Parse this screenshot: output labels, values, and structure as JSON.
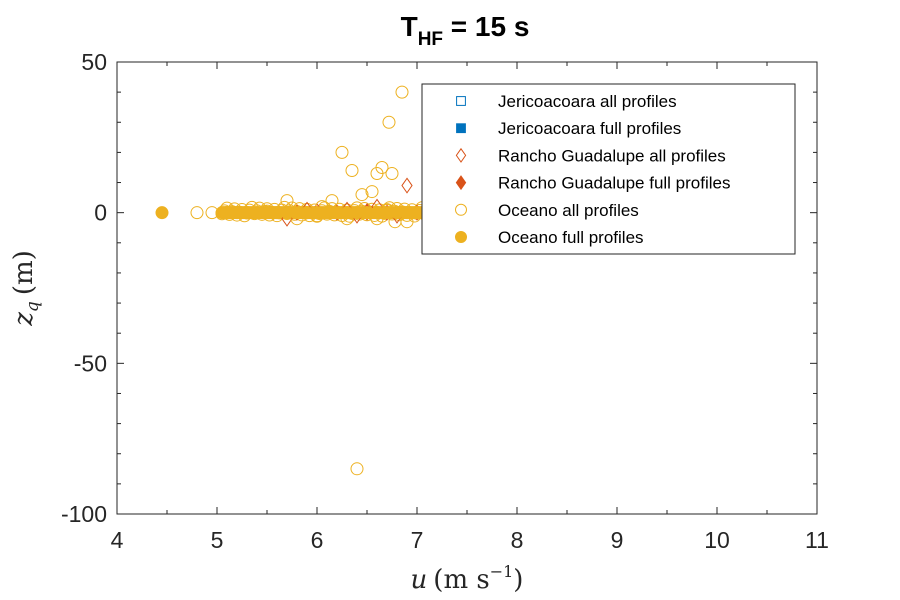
{
  "chart_data": {
    "type": "scatter",
    "title": {
      "main": "T",
      "sub": "HF",
      "rest": " = 15 s"
    },
    "xlabel": {
      "var": "u",
      "unit": "(m s",
      "exp": "−1",
      "close": ")"
    },
    "ylabel": {
      "var": "z",
      "sub": "q",
      "unit": "(m)"
    },
    "xlim": [
      4,
      11
    ],
    "ylim": [
      -100,
      50
    ],
    "xticks": [
      4,
      5,
      6,
      7,
      8,
      9,
      10,
      11
    ],
    "yticks": [
      50,
      0,
      -50,
      -100
    ],
    "xtick_labels": [
      "4",
      "5",
      "6",
      "7",
      "8",
      "9",
      "10",
      "11"
    ],
    "ytick_labels": [
      "50",
      "0",
      "-50",
      "-100"
    ],
    "grid": false,
    "legend_placement": "top-right",
    "series": [
      {
        "name": "Jericoacoara all profiles",
        "marker": "square",
        "filled": false,
        "color": "#0072BD",
        "points": []
      },
      {
        "name": "Jericoacoara full profiles",
        "marker": "square",
        "filled": true,
        "color": "#0072BD",
        "points": []
      },
      {
        "name": "Rancho Guadalupe all profiles",
        "marker": "diamond",
        "filled": false,
        "color": "#D95319",
        "points": [
          [
            5.7,
            -2
          ],
          [
            6.0,
            0.5
          ],
          [
            6.3,
            1
          ],
          [
            6.5,
            0
          ],
          [
            6.6,
            2
          ],
          [
            6.8,
            -1
          ],
          [
            6.9,
            9
          ],
          [
            7.0,
            0
          ],
          [
            6.4,
            -1
          ],
          [
            5.9,
            1
          ]
        ]
      },
      {
        "name": "Rancho Guadalupe full profiles",
        "marker": "diamond",
        "filled": true,
        "color": "#D95319",
        "points": [
          [
            6.2,
            0
          ],
          [
            6.5,
            0.5
          ],
          [
            6.7,
            0
          ],
          [
            5.8,
            0
          ]
        ]
      },
      {
        "name": "Oceano all profiles",
        "marker": "circle",
        "filled": false,
        "color": "#EDB120",
        "points": [
          [
            4.8,
            0
          ],
          [
            4.95,
            0
          ],
          [
            5.1,
            0
          ],
          [
            5.3,
            0
          ],
          [
            5.5,
            0.5
          ],
          [
            5.7,
            4
          ],
          [
            5.9,
            0
          ],
          [
            6.05,
            2
          ],
          [
            6.15,
            4
          ],
          [
            6.25,
            20
          ],
          [
            6.35,
            14
          ],
          [
            6.45,
            6
          ],
          [
            6.55,
            7
          ],
          [
            6.6,
            13
          ],
          [
            6.65,
            15
          ],
          [
            6.7,
            1
          ],
          [
            6.72,
            30
          ],
          [
            6.75,
            13
          ],
          [
            6.78,
            -3
          ],
          [
            6.85,
            40
          ],
          [
            6.9,
            -3
          ],
          [
            6.4,
            -85
          ],
          [
            5.8,
            -2
          ],
          [
            6.0,
            -1
          ],
          [
            6.3,
            -2
          ],
          [
            6.5,
            0
          ],
          [
            6.6,
            -2
          ],
          [
            7.0,
            0
          ]
        ]
      },
      {
        "name": "Oceano full profiles",
        "marker": "circle",
        "filled": true,
        "color": "#EDB120",
        "points": [
          [
            4.45,
            0
          ],
          [
            5.1,
            0
          ],
          [
            5.2,
            0
          ],
          [
            5.3,
            0
          ],
          [
            5.4,
            0
          ],
          [
            5.5,
            0
          ],
          [
            5.6,
            0
          ],
          [
            5.7,
            0
          ],
          [
            5.8,
            0
          ],
          [
            5.9,
            0
          ],
          [
            6.0,
            0
          ],
          [
            6.1,
            0
          ],
          [
            6.2,
            0
          ],
          [
            6.3,
            0
          ],
          [
            6.4,
            0
          ],
          [
            6.5,
            0
          ],
          [
            6.6,
            0
          ],
          [
            6.7,
            0
          ],
          [
            6.8,
            0
          ],
          [
            6.9,
            0
          ],
          [
            7.0,
            0
          ]
        ]
      }
    ]
  }
}
